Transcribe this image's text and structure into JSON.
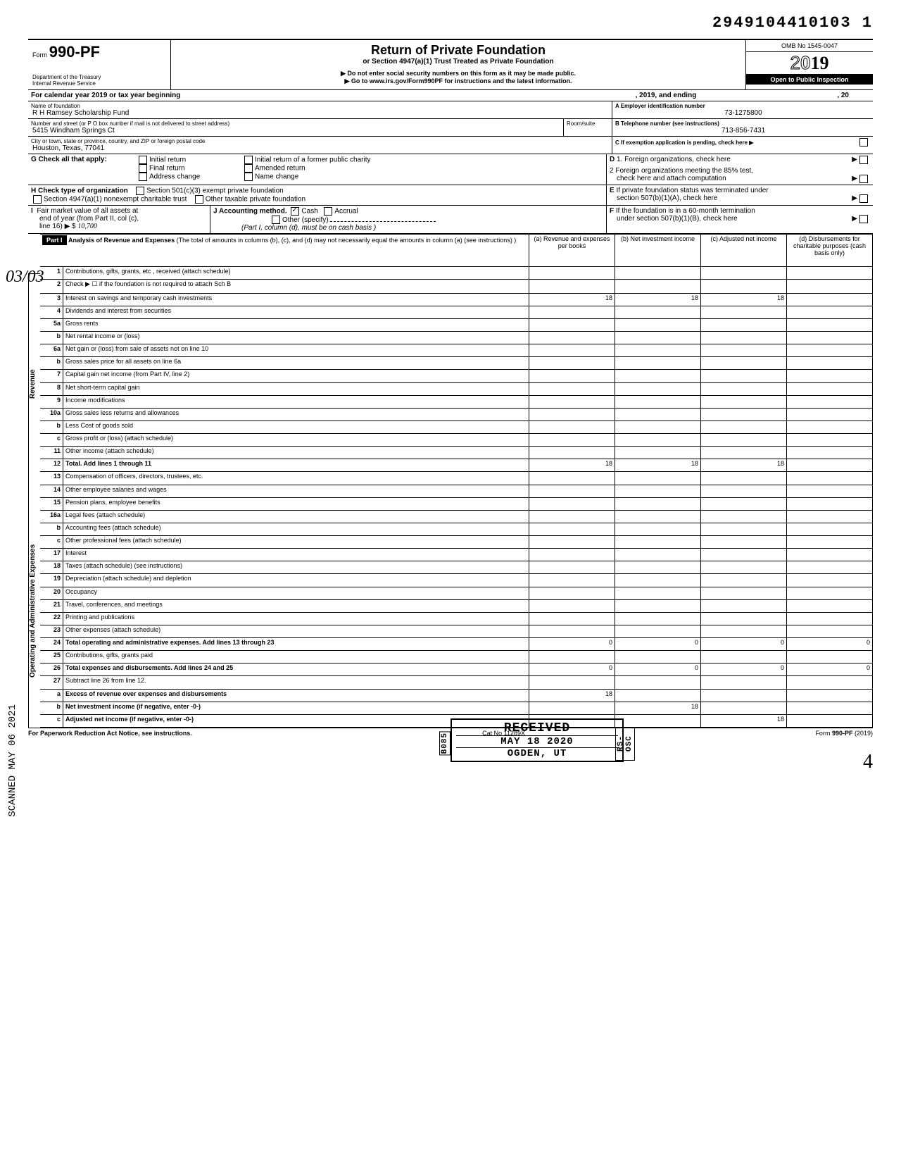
{
  "doc_id": "2949104410103 1",
  "form": {
    "prefix": "Form",
    "number": "990-PF",
    "dept1": "Department of the Treasury",
    "dept2": "Internal Revenue Service"
  },
  "header": {
    "title": "Return of Private Foundation",
    "subtitle": "or Section 4947(a)(1) Trust Treated as Private Foundation",
    "note1": "▶ Do not enter social security numbers on this form as it may be made public.",
    "note2": "▶ Go to www.irs.gov/Form990PF for instructions and the latest information.",
    "omb": "OMB No 1545-0047",
    "year": "2019",
    "year_prefix": "2",
    "year_suffix": "19",
    "inspection": "Open to Public Inspection"
  },
  "cal_year": {
    "label": "For calendar year 2019 or tax year beginning",
    "mid": ", 2019, and ending",
    "end": ", 20"
  },
  "foundation": {
    "name_label": "Name of foundation",
    "name": "R H Ramsey Scholarship Fund",
    "street_label": "Number and street (or P O  box number if mail is not delivered to street address)",
    "room_label": "Room/suite",
    "street": "5415 Windham Springs Ct",
    "city_label": "City or town, state or province, country, and ZIP or foreign postal code",
    "city": "Houston, Texas, 77041"
  },
  "box_a": {
    "label": "A  Employer identification number",
    "value": "73-1275800"
  },
  "box_b": {
    "label": "B  Telephone number (see instructions)",
    "value": "713-856-7431"
  },
  "box_c": {
    "label": "C  If exemption application is pending, check here ▶"
  },
  "box_d": {
    "d1": "1. Foreign organizations, check here",
    "d2a": "2  Foreign organizations meeting the 85% test,",
    "d2b": "check here and attach computation"
  },
  "box_e": {
    "l1": "If private foundation status was terminated under",
    "l2": "section 507(b)(1)(A), check here"
  },
  "box_f": {
    "l1": "If the foundation is in a 60-month termination",
    "l2": "under section 507(b)(1)(B), check here"
  },
  "g": {
    "label": "G   Check all that apply:",
    "opts": [
      "Initial return",
      "Final return",
      "Address change",
      "Initial return of a former public charity",
      "Amended return",
      "Name change"
    ]
  },
  "h": {
    "label": "H   Check type of organization",
    "opts": [
      "Section 501(c)(3) exempt private foundation",
      "Section 4947(a)(1) nonexempt charitable trust",
      "Other taxable private foundation"
    ]
  },
  "i": {
    "l1": "Fair market value of all assets at",
    "l2": "end of year  (from Part II, col (c),",
    "l3": "line 16) ▶  $",
    "handwritten": "10,700",
    "note": "(Part I, column (d), must be on cash basis )"
  },
  "j": {
    "label": "J   Accounting method.",
    "cash": "Cash",
    "accrual": "Accrual",
    "other": "Other (specify)"
  },
  "part1": {
    "tag": "Part I",
    "title": "Analysis of Revenue and Expenses",
    "sub": "(The total of amounts in columns (b), (c), and (d) may not necessarily equal the amounts in column (a) (see instructions) )",
    "cols": {
      "a": "(a) Revenue and expenses per books",
      "b": "(b) Net investment income",
      "c": "(c) Adjusted net income",
      "d": "(d) Disbursements for charitable purposes (cash basis only)"
    }
  },
  "side_labels": {
    "rev": "Revenue",
    "exp": "Operating and Administrative Expenses"
  },
  "lines": [
    {
      "n": "1",
      "d": "Contributions, gifts, grants, etc , received (attach schedule)"
    },
    {
      "n": "2",
      "d": "Check ▶ ☐ if the foundation is not required to attach Sch  B"
    },
    {
      "n": "3",
      "d": "Interest on savings and temporary cash investments",
      "a": "18",
      "b": "18",
      "c": "18"
    },
    {
      "n": "4",
      "d": "Dividends and interest from securities"
    },
    {
      "n": "5a",
      "d": "Gross rents"
    },
    {
      "n": "b",
      "d": "Net rental income or (loss)"
    },
    {
      "n": "6a",
      "d": "Net gain or (loss) from sale of assets not on line 10"
    },
    {
      "n": "b",
      "d": "Gross sales price for all assets on line 6a"
    },
    {
      "n": "7",
      "d": "Capital gain net income (from Part IV, line 2)"
    },
    {
      "n": "8",
      "d": "Net short-term capital gain"
    },
    {
      "n": "9",
      "d": "Income modifications"
    },
    {
      "n": "10a",
      "d": "Gross sales less returns and allowances"
    },
    {
      "n": "b",
      "d": "Less  Cost of goods sold"
    },
    {
      "n": "c",
      "d": "Gross profit or (loss) (attach schedule)"
    },
    {
      "n": "11",
      "d": "Other income (attach schedule)"
    },
    {
      "n": "12",
      "d": "Total. Add lines 1 through 11",
      "a": "18",
      "b": "18",
      "c": "18",
      "bold": true
    },
    {
      "n": "13",
      "d": "Compensation of officers, directors, trustees, etc."
    },
    {
      "n": "14",
      "d": "Other employee salaries and wages"
    },
    {
      "n": "15",
      "d": "Pension plans, employee benefits"
    },
    {
      "n": "16a",
      "d": "Legal fees (attach schedule)"
    },
    {
      "n": "b",
      "d": "Accounting fees (attach schedule)"
    },
    {
      "n": "c",
      "d": "Other professional fees (attach schedule)"
    },
    {
      "n": "17",
      "d": "Interest"
    },
    {
      "n": "18",
      "d": "Taxes (attach schedule) (see instructions)"
    },
    {
      "n": "19",
      "d": "Depreciation (attach schedule) and depletion"
    },
    {
      "n": "20",
      "d": "Occupancy"
    },
    {
      "n": "21",
      "d": "Travel, conferences, and meetings"
    },
    {
      "n": "22",
      "d": "Printing and publications"
    },
    {
      "n": "23",
      "d": "Other expenses (attach schedule)"
    },
    {
      "n": "24",
      "d": "Total operating and administrative expenses. Add lines 13 through 23",
      "a": "0",
      "b": "0",
      "c": "0",
      "dd": "0",
      "bold": true
    },
    {
      "n": "25",
      "d": "Contributions, gifts, grants paid"
    },
    {
      "n": "26",
      "d": "Total expenses and disbursements. Add lines 24 and 25",
      "a": "0",
      "b": "0",
      "c": "0",
      "dd": "0",
      "bold": true
    },
    {
      "n": "27",
      "d": "Subtract line 26 from line 12."
    },
    {
      "n": "a",
      "d": "Excess of revenue over expenses and disbursements",
      "a": "18",
      "bold": true
    },
    {
      "n": "b",
      "d": "Net investment income (if negative, enter -0-)",
      "b": "18",
      "bold": true
    },
    {
      "n": "c",
      "d": "Adjusted net income (if negative, enter -0-)",
      "c": "18",
      "bold": true
    }
  ],
  "stamp": {
    "l1": "RECEIVED",
    "l2": "MAY 18 2020",
    "l3": "OGDEN, UT",
    "side1": "B085",
    "side2": "RS-OSC"
  },
  "scanned": "SCANNED MAY 06 2021",
  "footer": {
    "left": "For Paperwork Reduction Act Notice, see instructions.",
    "mid": "Cat No  11289X",
    "right": "Form 990-PF (2019)"
  },
  "margin_note": "03/03",
  "page_mark": "4"
}
